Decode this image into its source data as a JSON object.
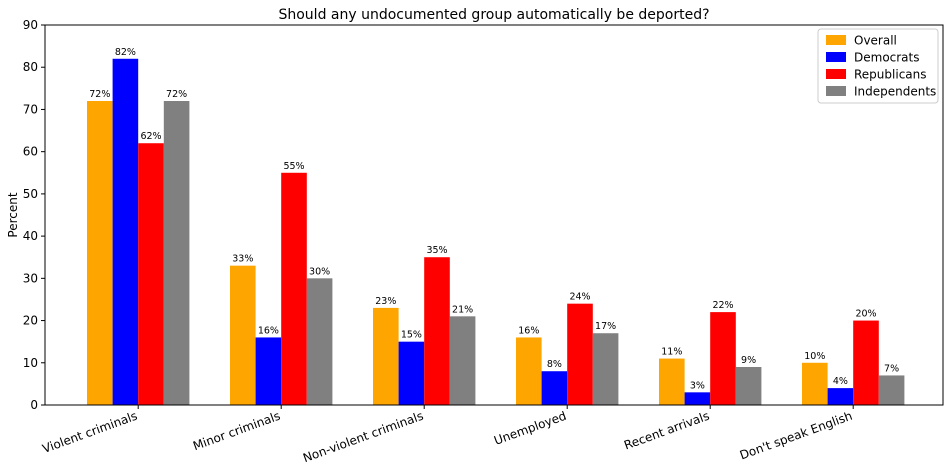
{
  "chart_data": {
    "type": "bar",
    "title": "Should any undocumented group automatically be deported?",
    "xlabel": "",
    "ylabel": "Percent",
    "ylim": [
      0,
      90
    ],
    "yticks": [
      0,
      10,
      20,
      30,
      40,
      50,
      60,
      70,
      80,
      90
    ],
    "grid": false,
    "legend_position": "top-right",
    "categories": [
      "Violent criminals",
      "Minor criminals",
      "Non-violent criminals",
      "Unemployed",
      "Recent arrivals",
      "Don't speak English"
    ],
    "series": [
      {
        "name": "Overall",
        "color": "#FFA500",
        "values": [
          72,
          33,
          23,
          16,
          11,
          10
        ],
        "labels": [
          "72%",
          "33%",
          "23%",
          "16%",
          "11%",
          "10%"
        ]
      },
      {
        "name": "Democrats",
        "color": "#0000FF",
        "values": [
          82,
          16,
          15,
          8,
          3,
          4
        ],
        "labels": [
          "82%",
          "16%",
          "15%",
          "8%",
          "3%",
          "4%"
        ]
      },
      {
        "name": "Republicans",
        "color": "#FF0000",
        "values": [
          62,
          55,
          35,
          24,
          22,
          20
        ],
        "labels": [
          "62%",
          "55%",
          "35%",
          "24%",
          "22%",
          "20%"
        ]
      },
      {
        "name": "Independents",
        "color": "#808080",
        "values": [
          72,
          30,
          21,
          17,
          9,
          7
        ],
        "labels": [
          "72%",
          "30%",
          "21%",
          "17%",
          "9%",
          "7%"
        ]
      }
    ]
  }
}
